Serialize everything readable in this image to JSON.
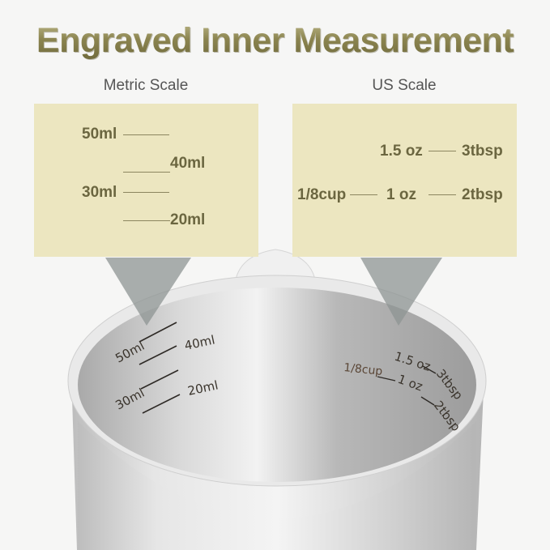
{
  "title": "Engraved Inner Measurement",
  "metric": {
    "label": "Metric Scale",
    "marks": [
      "50ml",
      "40ml",
      "30ml",
      "20ml"
    ]
  },
  "us": {
    "label": "US Scale",
    "oz_15": "1.5 oz",
    "tbsp_3": "3tbsp",
    "cup_18": "1/8cup",
    "oz_1": "1 oz",
    "tbsp_2": "2tbsp"
  },
  "colors": {
    "panel": "#ece6c0",
    "title": "#8c8550",
    "text": "#6b6640"
  }
}
